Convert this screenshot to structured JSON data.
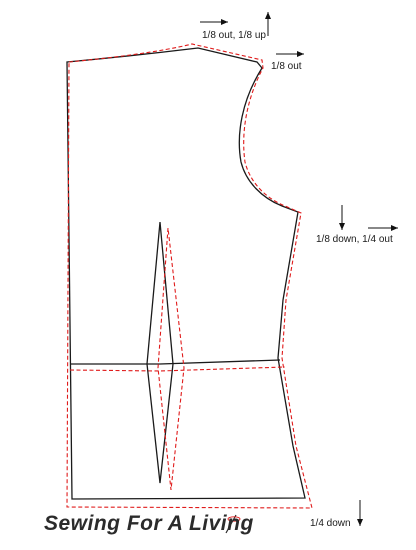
{
  "annotations": {
    "neck": "1/8 out, 1/8 up",
    "shoulder": "1/8 out",
    "side_seam": "1/8 down, 1/4 out",
    "hem": "1/4 down"
  },
  "brand": {
    "text": "Sewing For A Living"
  },
  "colors": {
    "original_outline": "#1a1a1a",
    "altered_outline": "#e01b1b",
    "arrow": "#111111"
  },
  "icons": {
    "arrow_right": "arrow-right-icon",
    "arrow_up": "arrow-up-icon",
    "arrow_down": "arrow-down-icon",
    "needle": "needle-icon"
  }
}
